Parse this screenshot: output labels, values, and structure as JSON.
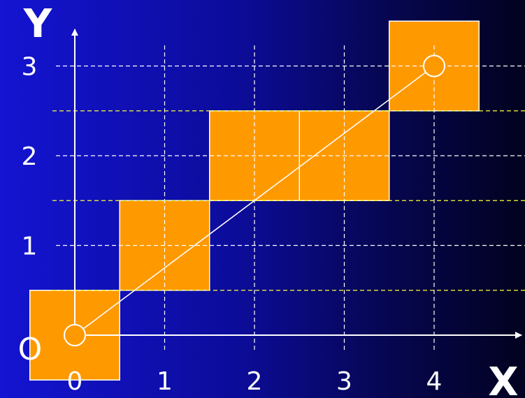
{
  "diagram": {
    "axis_labels": {
      "x": "X",
      "y": "Y",
      "origin": "O"
    },
    "x_ticks": [
      "0",
      "1",
      "2",
      "3",
      "4"
    ],
    "y_ticks": [
      "1",
      "2",
      "3"
    ],
    "line": {
      "from": [
        0,
        0
      ],
      "to": [
        4,
        3
      ]
    },
    "pixels": [
      [
        0,
        0
      ],
      [
        1,
        1
      ],
      [
        2,
        2
      ],
      [
        3,
        2
      ],
      [
        4,
        3
      ]
    ],
    "colors": {
      "pixel_fill": "#ff9900",
      "pixel_stroke": "#ffffff",
      "line": "#ffffff",
      "axes": "#ffffff",
      "integer_grid": "#ffffff",
      "midpoint_grid": "#ffff33",
      "text": "#ffffff"
    }
  }
}
